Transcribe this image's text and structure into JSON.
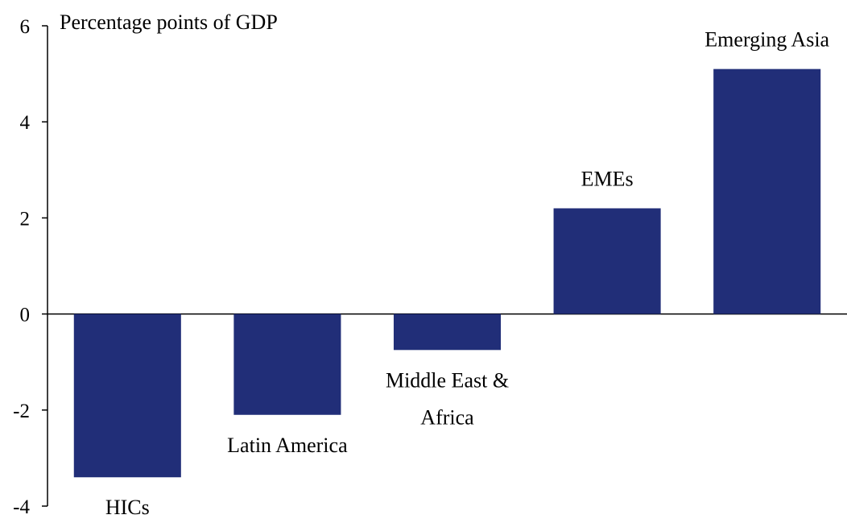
{
  "chart_data": {
    "type": "bar",
    "unit_label": "Percentage points of GDP",
    "categories": [
      {
        "label_lines": [
          "HICs"
        ],
        "label_position": "below"
      },
      {
        "label_lines": [
          "Latin America"
        ],
        "label_position": "below"
      },
      {
        "label_lines": [
          "Middle East &",
          "Africa"
        ],
        "label_position": "below"
      },
      {
        "label_lines": [
          "EMEs"
        ],
        "label_position": "above"
      },
      {
        "label_lines": [
          "Emerging Asia"
        ],
        "label_position": "above"
      }
    ],
    "values": [
      -3.4,
      -2.1,
      -0.75,
      2.2,
      5.1
    ],
    "ylim": [
      -4,
      6
    ],
    "yticks": [
      6,
      4,
      2,
      0,
      -2,
      -4
    ],
    "ytick_labels": [
      "6",
      "4",
      "2",
      "0",
      "-2",
      "-4"
    ],
    "grid": false,
    "legend": "none",
    "bar_color": "#212E78"
  }
}
